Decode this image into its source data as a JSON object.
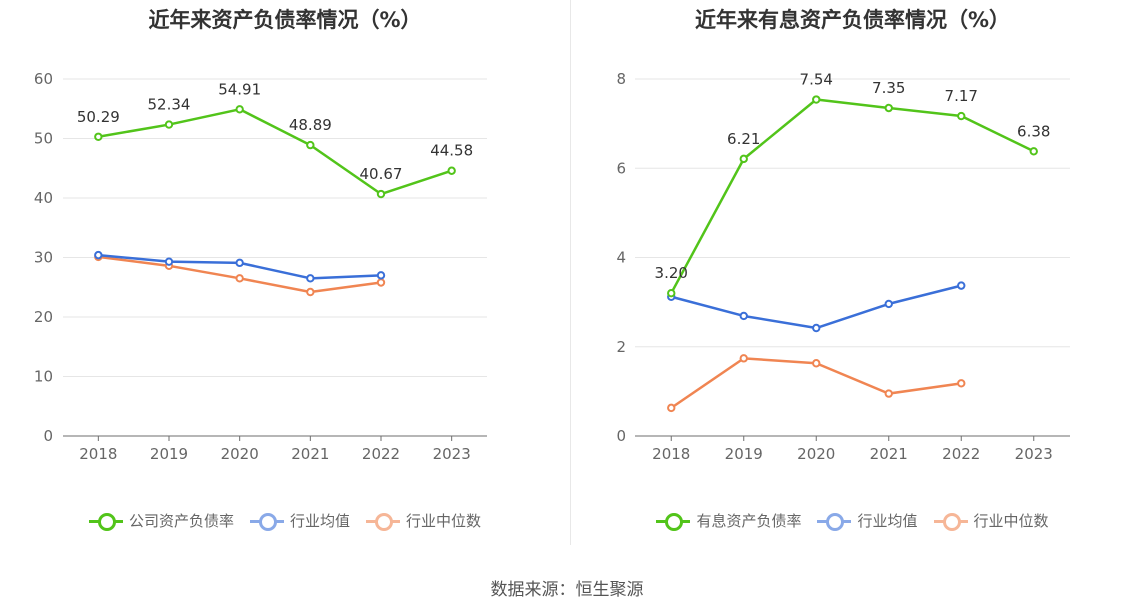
{
  "source": "数据来源：恒生聚源",
  "chart_data": [
    {
      "type": "line",
      "title": "近年来资产负债率情况（%）",
      "categories": [
        "2018",
        "2019",
        "2020",
        "2021",
        "2022",
        "2023"
      ],
      "ylim": [
        0,
        60
      ],
      "yticks": [
        0,
        10,
        20,
        30,
        40,
        50,
        60
      ],
      "grid": true,
      "legend_position": "bottom",
      "series": [
        {
          "name": "公司资产负债率",
          "color": "#52c41a",
          "labels": true,
          "values": [
            50.29,
            52.34,
            54.91,
            48.89,
            40.67,
            44.58
          ]
        },
        {
          "name": "行业均值",
          "color": "#3a6fd8",
          "labels": false,
          "values": [
            30.4,
            29.3,
            29.1,
            26.5,
            27.0,
            null
          ]
        },
        {
          "name": "行业中位数",
          "color": "#f08552",
          "labels": false,
          "values": [
            30.1,
            28.6,
            26.5,
            24.2,
            25.8,
            null
          ]
        }
      ]
    },
    {
      "type": "line",
      "title": "近年来有息资产负债率情况（%）",
      "categories": [
        "2018",
        "2019",
        "2020",
        "2021",
        "2022",
        "2023"
      ],
      "ylim": [
        0,
        8
      ],
      "yticks": [
        0,
        2,
        4,
        6,
        8
      ],
      "grid": true,
      "legend_position": "bottom",
      "series": [
        {
          "name": "有息资产负债率",
          "color": "#52c41a",
          "labels": true,
          "values": [
            3.2,
            6.21,
            7.54,
            7.35,
            7.17,
            6.38
          ],
          "label_text": [
            "3.20",
            "6.21",
            "7.54",
            "7.35",
            "7.17",
            "6.38"
          ]
        },
        {
          "name": "行业均值",
          "color": "#3a6fd8",
          "labels": false,
          "values": [
            3.12,
            2.69,
            2.42,
            2.96,
            3.37,
            null
          ]
        },
        {
          "name": "行业中位数",
          "color": "#f08552",
          "labels": false,
          "values": [
            0.63,
            1.74,
            1.63,
            0.95,
            1.18,
            null
          ]
        }
      ]
    }
  ]
}
